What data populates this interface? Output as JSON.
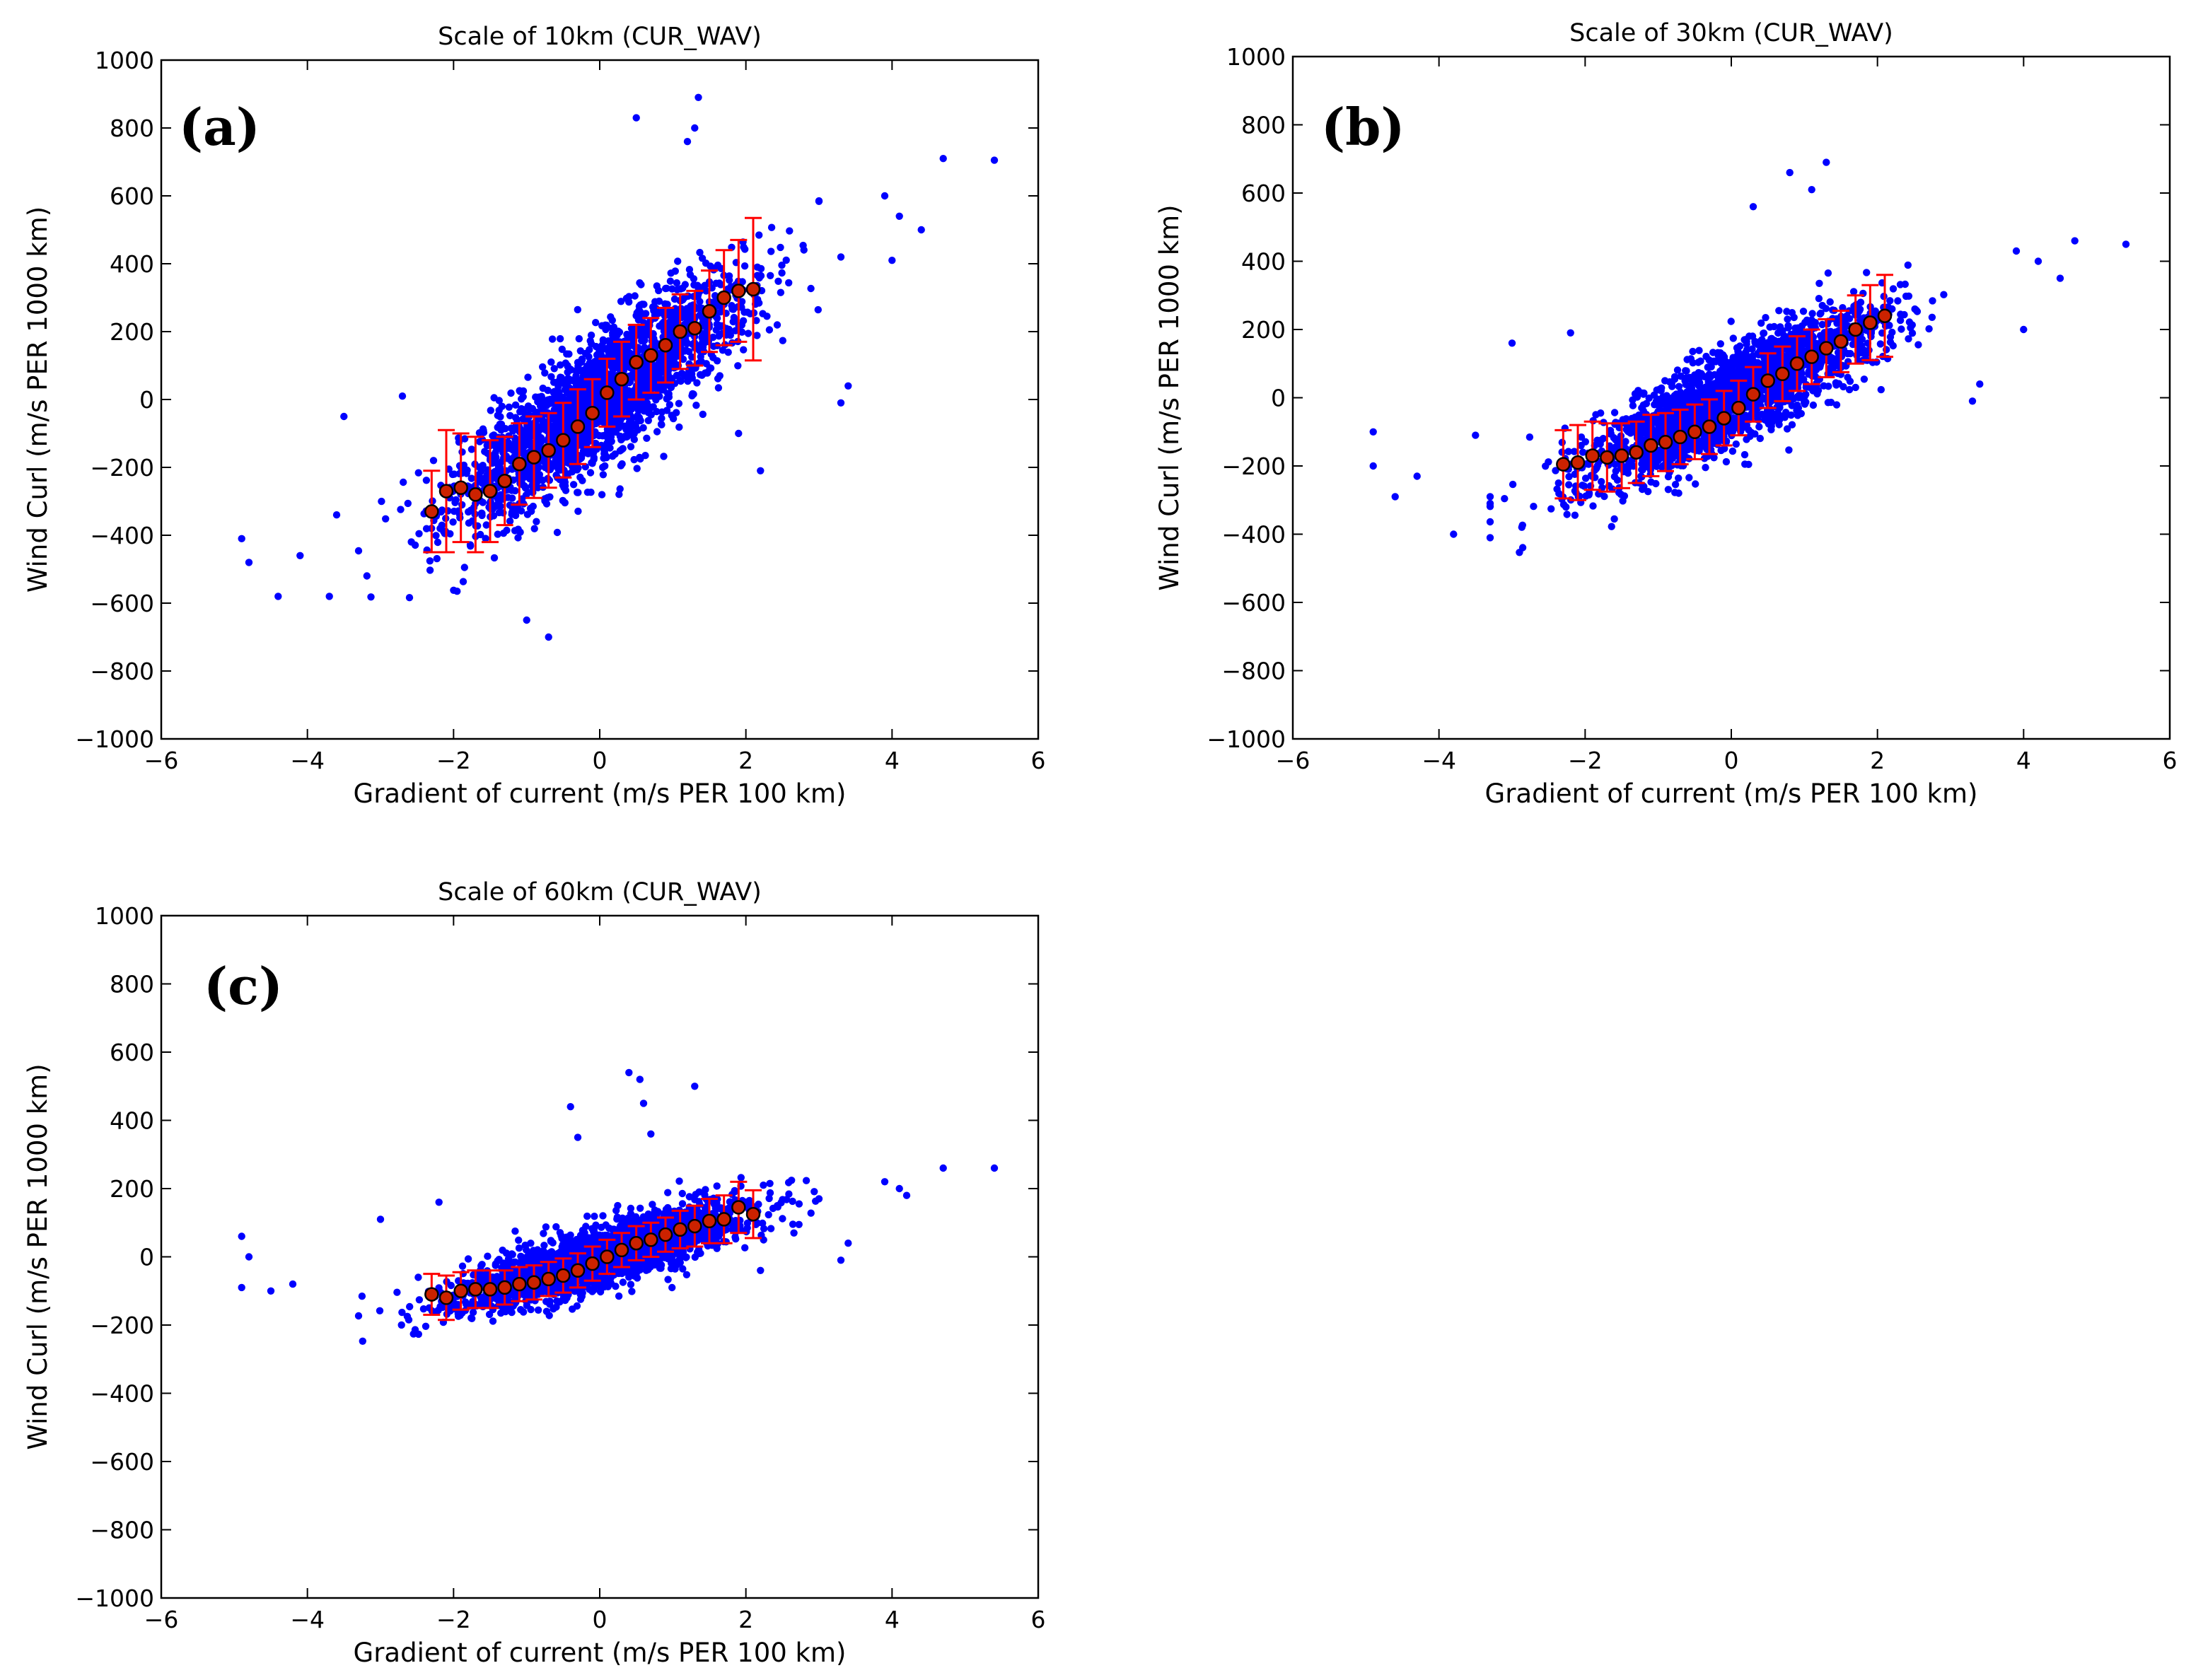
{
  "figure": {
    "background": "#ffffff"
  },
  "style": {
    "scatter_color": "#0000ff",
    "mean_fill": "#cc2200",
    "mean_edge": "#000000",
    "errorbar_color": "#ff0000",
    "axis_color": "#000000"
  },
  "chart_data": [
    {
      "type": "scatter",
      "panel_label": "(a)",
      "title": "Scale of 10km (CUR_WAV)",
      "xlabel": "Gradient of current (m/s PER 100 km)",
      "ylabel": "Wind Curl (m/s PER 1000 km)",
      "xlim": [
        -6,
        6
      ],
      "ylim": [
        -1000,
        1000
      ],
      "xticks": [
        -6,
        -4,
        -2,
        0,
        2,
        4,
        6
      ],
      "yticks": [
        -1000,
        -800,
        -600,
        -400,
        -200,
        0,
        200,
        400,
        600,
        800,
        1000
      ],
      "xticklabels": [
        "−6",
        "−4",
        "−2",
        "0",
        "2",
        "4",
        "6"
      ],
      "yticklabels": [
        "−1000",
        "−800",
        "−600",
        "−400",
        "−200",
        "0",
        "200",
        "400",
        "600",
        "800",
        "1000"
      ],
      "scatter_model": {
        "slope": 150,
        "sigma": 95,
        "n": 2200,
        "x_sigma": 1.0
      },
      "outliers": [
        [
          -4.9,
          -410
        ],
        [
          -4.8,
          -480
        ],
        [
          -4.4,
          -580
        ],
        [
          -4.1,
          -460
        ],
        [
          -3.7,
          -580
        ],
        [
          -3.5,
          -50
        ],
        [
          -3.6,
          -340
        ],
        [
          0.5,
          830
        ],
        [
          1.2,
          760
        ],
        [
          1.35,
          890
        ],
        [
          1.3,
          800
        ],
        [
          4.7,
          710
        ],
        [
          5.4,
          705
        ],
        [
          4.4,
          500
        ],
        [
          4.0,
          410
        ],
        [
          3.4,
          40
        ],
        [
          3.3,
          -10
        ],
        [
          2.2,
          -210
        ],
        [
          1.9,
          -100
        ],
        [
          -1.9,
          -200
        ],
        [
          -2.7,
          10
        ],
        [
          -0.7,
          -700
        ],
        [
          -1.0,
          -650
        ],
        [
          3.9,
          600
        ],
        [
          4.1,
          540
        ],
        [
          3.3,
          420
        ]
      ],
      "mean_series": {
        "name": "bin mean ± std",
        "x": [
          -2.3,
          -2.1,
          -1.9,
          -1.7,
          -1.5,
          -1.3,
          -1.1,
          -0.9,
          -0.7,
          -0.5,
          -0.3,
          -0.1,
          0.1,
          0.3,
          0.5,
          0.7,
          0.9,
          1.1,
          1.3,
          1.5,
          1.7,
          1.9,
          2.1
        ],
        "y": [
          -330,
          -270,
          -260,
          -280,
          -270,
          -240,
          -190,
          -170,
          -150,
          -120,
          -80,
          -40,
          20,
          60,
          110,
          130,
          160,
          200,
          210,
          260,
          300,
          320,
          325
        ],
        "err": [
          120,
          180,
          160,
          170,
          150,
          130,
          120,
          120,
          110,
          110,
          110,
          100,
          100,
          110,
          110,
          110,
          110,
          110,
          110,
          120,
          140,
          150,
          210
        ]
      }
    },
    {
      "type": "scatter",
      "panel_label": "(b)",
      "title": "Scale of 30km (CUR_WAV)",
      "xlabel": "Gradient of current (m/s PER 100 km)",
      "ylabel": "Wind Curl (m/s PER 1000 km)",
      "xlim": [
        -6,
        6
      ],
      "ylim": [
        -1000,
        1000
      ],
      "xticks": [
        -6,
        -4,
        -2,
        0,
        2,
        4,
        6
      ],
      "yticks": [
        -1000,
        -800,
        -600,
        -400,
        -200,
        0,
        200,
        400,
        600,
        800,
        1000
      ],
      "xticklabels": [
        "−6",
        "−4",
        "−2",
        "0",
        "2",
        "4",
        "6"
      ],
      "yticklabels": [
        "−1000",
        "−800",
        "−600",
        "−400",
        "−200",
        "0",
        "200",
        "400",
        "600",
        "800",
        "1000"
      ],
      "scatter_model": {
        "slope": 105,
        "sigma": 70,
        "n": 2200,
        "x_sigma": 1.0
      },
      "outliers": [
        [
          -4.9,
          -100
        ],
        [
          -4.9,
          -200
        ],
        [
          -4.6,
          -290
        ],
        [
          -4.3,
          -230
        ],
        [
          -3.8,
          -400
        ],
        [
          -3.0,
          160
        ],
        [
          -2.2,
          190
        ],
        [
          0.3,
          560
        ],
        [
          0.8,
          660
        ],
        [
          1.3,
          690
        ],
        [
          1.1,
          610
        ],
        [
          4.7,
          460
        ],
        [
          5.4,
          450
        ],
        [
          4.5,
          350
        ],
        [
          4.0,
          200
        ],
        [
          3.4,
          40
        ],
        [
          3.3,
          -10
        ],
        [
          2.2,
          260
        ],
        [
          -3.3,
          -310
        ],
        [
          -3.5,
          -110
        ],
        [
          3.9,
          430
        ],
        [
          4.2,
          400
        ]
      ],
      "mean_series": {
        "name": "bin mean ± std",
        "x": [
          -2.3,
          -2.1,
          -1.9,
          -1.7,
          -1.5,
          -1.3,
          -1.1,
          -0.9,
          -0.7,
          -0.5,
          -0.3,
          -0.1,
          0.1,
          0.3,
          0.5,
          0.7,
          0.9,
          1.1,
          1.3,
          1.5,
          1.7,
          1.9,
          2.1
        ],
        "y": [
          -195,
          -190,
          -170,
          -175,
          -170,
          -160,
          -140,
          -130,
          -115,
          -100,
          -85,
          -60,
          -30,
          10,
          50,
          70,
          100,
          120,
          145,
          165,
          200,
          220,
          240
        ],
        "err": [
          100,
          110,
          100,
          100,
          95,
          90,
          90,
          85,
          80,
          80,
          80,
          80,
          80,
          80,
          80,
          80,
          80,
          80,
          85,
          90,
          100,
          110,
          120
        ]
      }
    },
    {
      "type": "scatter",
      "panel_label": "(c)",
      "title": "Scale of 60km (CUR_WAV)",
      "xlabel": "Gradient of current (m/s PER 100 km)",
      "ylabel": "Wind Curl (m/s PER 1000 km)",
      "xlim": [
        -6,
        6
      ],
      "ylim": [
        -1000,
        1000
      ],
      "xticks": [
        -6,
        -4,
        -2,
        0,
        2,
        4,
        6
      ],
      "yticks": [
        -1000,
        -800,
        -600,
        -400,
        -200,
        0,
        200,
        400,
        600,
        800,
        1000
      ],
      "xticklabels": [
        "−6",
        "−4",
        "−2",
        "0",
        "2",
        "4",
        "6"
      ],
      "yticklabels": [
        "−1000",
        "−800",
        "−600",
        "−400",
        "−200",
        "0",
        "200",
        "400",
        "600",
        "800",
        "1000"
      ],
      "scatter_model": {
        "slope": 60,
        "sigma": 45,
        "n": 2200,
        "x_sigma": 1.0
      },
      "outliers": [
        [
          -4.9,
          60
        ],
        [
          -4.8,
          0
        ],
        [
          -4.9,
          -90
        ],
        [
          -4.5,
          -100
        ],
        [
          -4.2,
          -80
        ],
        [
          -3.0,
          110
        ],
        [
          -2.2,
          160
        ],
        [
          0.4,
          540
        ],
        [
          0.55,
          520
        ],
        [
          0.6,
          450
        ],
        [
          1.3,
          500
        ],
        [
          0.7,
          360
        ],
        [
          -0.4,
          440
        ],
        [
          -0.3,
          350
        ],
        [
          4.7,
          260
        ],
        [
          5.4,
          260
        ],
        [
          4.2,
          180
        ],
        [
          3.4,
          40
        ],
        [
          3.3,
          -10
        ],
        [
          2.2,
          -40
        ],
        [
          3.9,
          220
        ],
        [
          4.1,
          200
        ]
      ],
      "mean_series": {
        "name": "bin mean ± std",
        "x": [
          -2.3,
          -2.1,
          -1.9,
          -1.7,
          -1.5,
          -1.3,
          -1.1,
          -0.9,
          -0.7,
          -0.5,
          -0.3,
          -0.1,
          0.1,
          0.3,
          0.5,
          0.7,
          0.9,
          1.1,
          1.3,
          1.5,
          1.7,
          1.9,
          2.1
        ],
        "y": [
          -110,
          -120,
          -100,
          -95,
          -95,
          -90,
          -80,
          -75,
          -65,
          -55,
          -40,
          -20,
          0,
          20,
          40,
          50,
          65,
          80,
          90,
          105,
          110,
          145,
          125
        ],
        "err": [
          60,
          65,
          55,
          55,
          55,
          50,
          50,
          50,
          50,
          50,
          50,
          50,
          50,
          50,
          50,
          50,
          50,
          55,
          60,
          65,
          70,
          75,
          70
        ]
      }
    }
  ]
}
